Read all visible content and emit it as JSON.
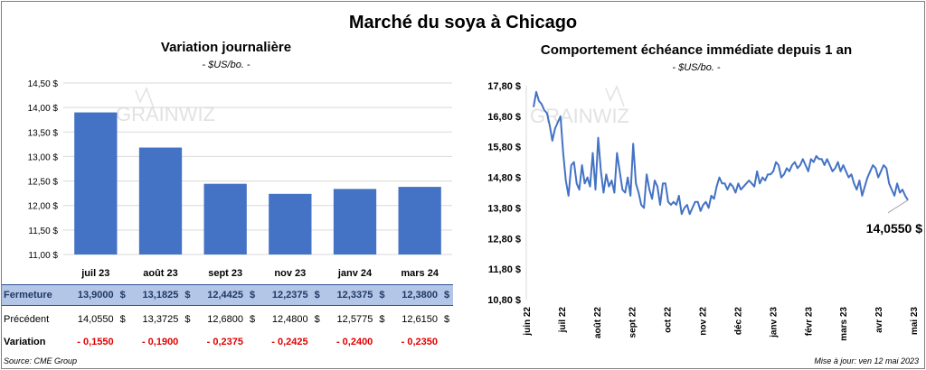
{
  "title": "Marché du soya à Chicago",
  "footer": {
    "source": "Source: CME Group",
    "update": "Mise à jour: ven 12 mai 2023"
  },
  "left_panel": {
    "title": "Variation  journalière",
    "unit": "- $US/bo. -",
    "watermark": "GRAINWIZ"
  },
  "right_panel": {
    "title": "Comportement  échéance immédiate depuis 1 an",
    "unit": "- $US/bo. -",
    "watermark": "GRAINWIZ",
    "last_value_label": "14,0550 $"
  },
  "table": {
    "rows": [
      {
        "label": "Fermeture",
        "values": [
          "13,9000",
          "13,1825",
          "12,4425",
          "12,2375",
          "12,3375",
          "12,3800"
        ],
        "currency": "$"
      },
      {
        "label": "Précédent",
        "values": [
          "14,0550",
          "13,3725",
          "12,6800",
          "12,4800",
          "12,5775",
          "12,6150"
        ],
        "currency": "$"
      },
      {
        "label": "Variation",
        "values": [
          "- 0,1550",
          "- 0,1900",
          "- 0,2375",
          "- 0,2425",
          "- 0,2400",
          "- 0,2350"
        ],
        "currency": ""
      }
    ]
  },
  "colors": {
    "bar": "#4472c4",
    "line": "#4472c4",
    "table_header": "#b4c6e7",
    "negative": "#e00000"
  },
  "chart_data": [
    {
      "type": "bar",
      "title": "Variation  journalière",
      "categories": [
        "juil 23",
        "août 23",
        "sept 23",
        "nov 23",
        "janv 24",
        "mars 24"
      ],
      "values": [
        13.9,
        13.1825,
        12.4425,
        12.2375,
        12.3375,
        12.38
      ],
      "ylim": [
        11.0,
        14.5
      ],
      "yticks": [
        11.0,
        11.5,
        12.0,
        12.5,
        13.0,
        13.5,
        14.0,
        14.5
      ],
      "ytick_labels": [
        "11,00 $",
        "11,50 $",
        "12,00 $",
        "12,50 $",
        "13,00 $",
        "13,50 $",
        "14,00 $",
        "14,50 $"
      ],
      "grid": "horizontal"
    },
    {
      "type": "line",
      "title": "Comportement  échéance immédiate depuis 1 an",
      "ylim": [
        10.8,
        17.8
      ],
      "yticks": [
        10.8,
        11.8,
        12.8,
        13.8,
        14.8,
        15.8,
        16.8,
        17.8
      ],
      "ytick_labels": [
        "10,80 $",
        "11,80 $",
        "12,80 $",
        "13,80 $",
        "14,80 $",
        "15,80 $",
        "16,80 $",
        "17,80 $"
      ],
      "xtick_labels": [
        "juin 22",
        "juil 22",
        "août 22",
        "sept 22",
        "oct 22",
        "nov 22",
        "déc 22",
        "janv 23",
        "févr 23",
        "mars 23",
        "avr 23",
        "mai 23"
      ],
      "last_value": 14.055,
      "series": [
        {
          "values": [
            17.1,
            17.6,
            17.3,
            17.2,
            17.0,
            16.9,
            16.5,
            16.0,
            16.4,
            16.6,
            16.8,
            15.6,
            14.7,
            14.2,
            15.2,
            15.3,
            14.6,
            14.4,
            15.2,
            14.6,
            14.8,
            14.5,
            15.6,
            14.4,
            16.1,
            15.0,
            14.3,
            14.9,
            14.5,
            14.7,
            14.3,
            15.6,
            15.0,
            14.4,
            14.3,
            14.8,
            14.2,
            15.9,
            14.6,
            14.3,
            13.9,
            13.8,
            14.9,
            14.4,
            14.1,
            14.7,
            14.5,
            13.9,
            14.6,
            14.6,
            14.0,
            13.9,
            14.0,
            13.9,
            14.2,
            13.6,
            13.8,
            13.9,
            13.6,
            13.8,
            14.0,
            14.0,
            13.7,
            13.9,
            14.0,
            13.8,
            14.2,
            14.1,
            14.5,
            14.8,
            14.6,
            14.6,
            14.4,
            14.6,
            14.5,
            14.3,
            14.6,
            14.4,
            14.5,
            14.6,
            14.7,
            14.6,
            14.5,
            15.0,
            14.6,
            14.8,
            14.7,
            14.9,
            14.9,
            15.0,
            15.3,
            15.2,
            14.8,
            14.9,
            15.1,
            15.0,
            15.2,
            15.3,
            15.1,
            15.2,
            15.4,
            15.2,
            15.0,
            15.4,
            15.3,
            15.5,
            15.4,
            15.4,
            15.2,
            15.4,
            15.2,
            15.0,
            15.1,
            15.3,
            15.0,
            15.2,
            15.0,
            14.8,
            14.9,
            14.6,
            14.4,
            14.7,
            14.2,
            14.5,
            14.8,
            15.0,
            15.2,
            15.1,
            14.8,
            15.0,
            15.2,
            15.1,
            14.6,
            14.4,
            14.2,
            14.6,
            14.3,
            14.4,
            14.2,
            14.055
          ]
        }
      ]
    }
  ]
}
